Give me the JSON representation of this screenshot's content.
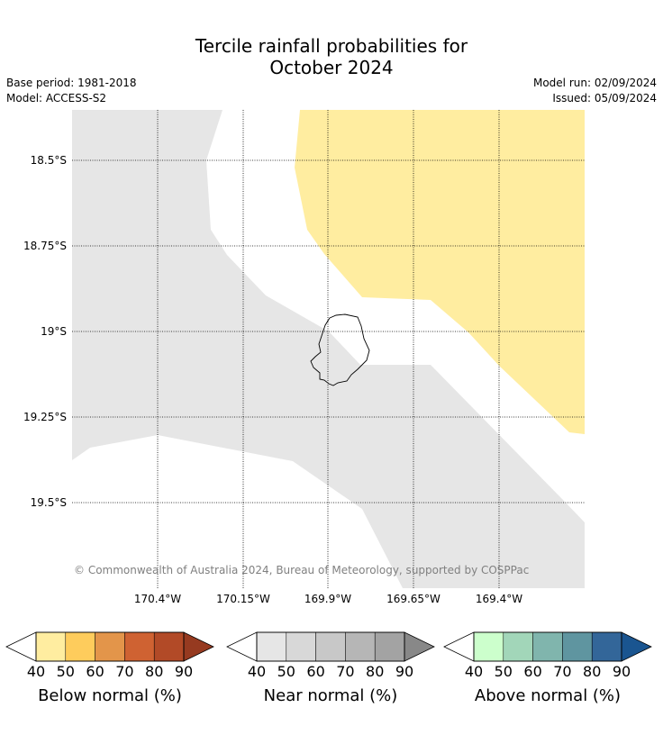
{
  "title_line1": "Tercile rainfall probabilities for",
  "title_line2": "October 2024",
  "base_period": "Base period: 1981-2018",
  "model": "Model: ACCESS-S2",
  "model_run": "Model run: 02/09/2024",
  "issued": "Issued: 05/09/2024",
  "latitudes": [
    "18.5°S",
    "18.75°S",
    "19°S",
    "19.25°S",
    "19.5°S"
  ],
  "longitudes": [
    "170.4°W",
    "170.15°W",
    "169.9°W",
    "169.65°W",
    "169.4°W"
  ],
  "copyright": "© Commonwealth of Australia 2024, Bureau of Meteorology, supported by COSPPac",
  "colors": {
    "land_grey": "#e6e6e6",
    "yellow": "#ffeda0",
    "outline": "#000000"
  },
  "colorbars": [
    {
      "title": "Below normal (%)",
      "ticks": [
        "40",
        "50",
        "60",
        "70",
        "80",
        "90"
      ],
      "colors": [
        "#ffeda0",
        "#fecc5c",
        "#e3954a",
        "#cf6232",
        "#b24a27",
        "#963a20"
      ]
    },
    {
      "title": "Near normal (%)",
      "ticks": [
        "40",
        "50",
        "60",
        "70",
        "80",
        "90"
      ],
      "colors": [
        "#e6e6e6",
        "#d8d8d8",
        "#c8c8c8",
        "#b6b6b6",
        "#a3a3a3",
        "#888888"
      ]
    },
    {
      "title": "Above normal (%)",
      "ticks": [
        "40",
        "50",
        "60",
        "70",
        "80",
        "90"
      ],
      "colors": [
        "#ccffcc",
        "#a2d6b9",
        "#80b5ad",
        "#5f95a0",
        "#336699",
        "#1a5590"
      ]
    }
  ]
}
